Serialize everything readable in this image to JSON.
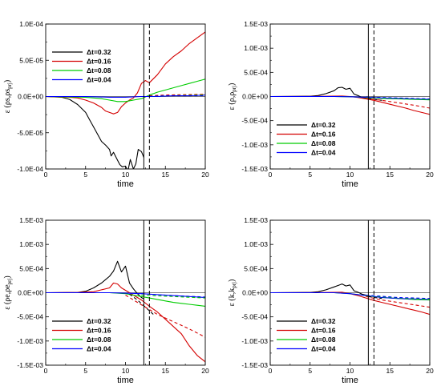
{
  "chart_data": [
    {
      "type": "line",
      "xlabel": "time",
      "ylabel": "ε (ρs,ρs",
      "ylabel_sub": "prj",
      "ylabel_close": ")",
      "xlim": [
        0,
        20
      ],
      "ylim": [
        -0.0001,
        0.0001
      ],
      "xticks": [
        "0",
        "5",
        "10",
        "15",
        "20"
      ],
      "yticks": [
        "-1.0E-04",
        "-5.0E-05",
        "0.0E+00",
        "5.0E-05",
        "1.0E-04"
      ],
      "legend_position": "top-left",
      "vlines": [
        {
          "x": 12.3,
          "style": "solid",
          "color": "#000000"
        },
        {
          "x": 13.0,
          "style": "dashed",
          "color": "#000000"
        }
      ],
      "series": [
        {
          "name": "Δt=0.32",
          "color": "#000000",
          "style": "solid",
          "x": [
            0,
            2,
            3,
            4,
            5,
            5.5,
            6,
            6.5,
            7,
            7.5,
            8,
            8.2,
            8.5,
            9,
            9.3,
            9.6,
            10,
            10.3,
            10.6,
            11,
            11.3,
            11.6,
            12,
            12.3
          ],
          "y": [
            0,
            -1e-06,
            -4e-06,
            -1.1e-05,
            -2.2e-05,
            -3.2e-05,
            -4.2e-05,
            -5.2e-05,
            -6.2e-05,
            -6.7e-05,
            -7.3e-05,
            -8.2e-05,
            -7.7e-05,
            -8.8e-05,
            -9.4e-05,
            -9.7e-05,
            -9.6e-05,
            -0.000103,
            -8.7e-05,
            -0.0001,
            -9.3e-05,
            -7.3e-05,
            -7.6e-05,
            -8.4e-05
          ]
        },
        {
          "name": "Δt=0.16",
          "color": "#d40000",
          "style": "solid",
          "x": [
            0,
            3,
            4,
            5,
            6,
            7,
            7.5,
            8,
            8.5,
            9,
            9.5,
            10,
            10.5,
            11,
            11.5,
            12,
            12.5,
            13,
            14,
            15,
            16,
            17,
            18,
            19,
            20
          ],
          "y": [
            0,
            -1e-06,
            -2e-06,
            -5e-06,
            -9e-06,
            -1.5e-05,
            -2e-05,
            -2.2e-05,
            -2.4e-05,
            -2.2e-05,
            -1.4e-05,
            -9e-06,
            -5e-06,
            -2e-06,
            5e-06,
            1.8e-05,
            2.2e-05,
            1.9e-05,
            3e-05,
            4.5e-05,
            5.5e-05,
            6.3e-05,
            7.3e-05,
            8.1e-05,
            8.9e-05
          ]
        },
        {
          "name": "Δt=0.08",
          "color": "#00cc00",
          "style": "solid",
          "x": [
            0,
            5,
            7,
            8,
            9,
            10,
            11,
            12,
            13,
            14,
            15,
            16,
            17,
            18,
            19,
            20
          ],
          "y": [
            0,
            -1e-06,
            -3e-06,
            -5e-06,
            -7e-06,
            -7e-06,
            -5e-06,
            -3e-06,
            2e-06,
            6e-06,
            9e-06,
            1.2e-05,
            1.5e-05,
            1.8e-05,
            2.1e-05,
            2.4e-05
          ]
        },
        {
          "name": "Δt=0.04",
          "color": "#0000ff",
          "style": "solid",
          "x": [
            0,
            5,
            8,
            10,
            12,
            14,
            16,
            18,
            20
          ],
          "y": [
            0,
            0,
            -1e-06,
            -1e-06,
            0,
            0,
            1e-06,
            1e-06,
            2e-06
          ]
        },
        {
          "name": "",
          "color": "#d40000",
          "style": "dashed",
          "x": [
            13,
            15,
            20
          ],
          "y": [
            1e-06,
            2e-06,
            3e-06
          ]
        },
        {
          "name": "",
          "color": "#00cc00",
          "style": "dashed",
          "x": [
            13,
            15,
            20
          ],
          "y": [
            0,
            1e-06,
            2e-06
          ]
        },
        {
          "name": "",
          "color": "#0000ff",
          "style": "dashed",
          "x": [
            13,
            15,
            20
          ],
          "y": [
            0,
            1e-06,
            1e-06
          ]
        }
      ]
    },
    {
      "type": "line",
      "xlabel": "time",
      "ylabel": "ε (ρ,ρ",
      "ylabel_sub": "prj",
      "ylabel_close": ")",
      "xlim": [
        0,
        20
      ],
      "ylim": [
        -0.0015,
        0.0015
      ],
      "xticks": [
        "0",
        "5",
        "10",
        "15",
        "20"
      ],
      "yticks": [
        "-1.5E-03",
        "-1.0E-03",
        "-5.0E-04",
        "0.0E+00",
        "5.0E-04",
        "1.0E-03",
        "1.5E-03"
      ],
      "legend_position": "bottom-left",
      "vlines": [
        {
          "x": 12.3,
          "style": "solid",
          "color": "#000000"
        },
        {
          "x": 13.0,
          "style": "dashed",
          "color": "#000000"
        }
      ],
      "series": [
        {
          "name": "Δt=0.32",
          "color": "#000000",
          "style": "solid",
          "x": [
            0,
            5,
            6,
            7,
            8,
            8.5,
            9,
            9.5,
            10,
            10.5,
            11,
            11.5,
            12,
            12.3
          ],
          "y": [
            0,
            5e-06,
            2e-05,
            6e-05,
            0.00012,
            0.00018,
            0.00019,
            0.00015,
            0.00017,
            5e-05,
            2e-05,
            -2e-05,
            -4e-05,
            -6e-05
          ]
        },
        {
          "name": "Δt=0.16",
          "color": "#d40000",
          "style": "solid",
          "x": [
            0,
            5,
            7,
            9,
            10,
            11,
            12,
            13,
            14,
            15,
            16,
            17,
            18,
            19,
            20
          ],
          "y": [
            0,
            2e-06,
            5e-06,
            1e-05,
            0,
            -2e-05,
            -5e-05,
            -8e-05,
            -0.00012,
            -0.00016,
            -0.0002,
            -0.00024,
            -0.00029,
            -0.00033,
            -0.00037
          ]
        },
        {
          "name": "Δt=0.08",
          "color": "#00cc00",
          "style": "solid",
          "x": [
            0,
            8,
            10,
            12,
            14,
            16,
            18,
            20
          ],
          "y": [
            0,
            0,
            -5e-06,
            -2e-05,
            -4e-05,
            -5e-05,
            -6e-05,
            -7e-05
          ]
        },
        {
          "name": "Δt=0.04",
          "color": "#0000ff",
          "style": "solid",
          "x": [
            0,
            8,
            10,
            12,
            14,
            16,
            18,
            20
          ],
          "y": [
            0,
            0,
            -5e-06,
            -1.5e-05,
            -3e-05,
            -4e-05,
            -5e-05,
            -6e-05
          ]
        },
        {
          "name": "",
          "color": "#000000",
          "style": "dashed",
          "x": [
            12.3,
            13,
            14
          ],
          "y": [
            -4e-05,
            -6e-05,
            -8e-05
          ]
        },
        {
          "name": "",
          "color": "#d40000",
          "style": "dashed",
          "x": [
            12,
            14,
            16,
            18,
            20
          ],
          "y": [
            -4e-05,
            -8e-05,
            -0.00013,
            -0.00018,
            -0.00024
          ]
        },
        {
          "name": "",
          "color": "#00cc00",
          "style": "dashed",
          "x": [
            12,
            16,
            20
          ],
          "y": [
            -2e-05,
            -4e-05,
            -6e-05
          ]
        },
        {
          "name": "",
          "color": "#0000ff",
          "style": "dashed",
          "x": [
            12,
            16,
            20
          ],
          "y": [
            -1e-05,
            -3e-05,
            -5e-05
          ]
        }
      ]
    },
    {
      "type": "line",
      "xlabel": "time",
      "ylabel": "ε (ρe,ρe",
      "ylabel_sub": "prj",
      "ylabel_close": ")",
      "xlim": [
        0,
        20
      ],
      "ylim": [
        -0.0015,
        0.0015
      ],
      "xticks": [
        "0",
        "5",
        "10",
        "15",
        "20"
      ],
      "yticks": [
        "-1.5E-03",
        "-1.0E-03",
        "-5.0E-04",
        "0.0E+00",
        "5.0E-04",
        "1.0E-03",
        "1.5E-03"
      ],
      "legend_position": "bottom-left",
      "vlines": [
        {
          "x": 12.3,
          "style": "solid",
          "color": "#000000"
        },
        {
          "x": 13.0,
          "style": "dashed",
          "color": "#000000"
        }
      ],
      "series": [
        {
          "name": "Δt=0.32",
          "color": "#000000",
          "style": "solid",
          "x": [
            0,
            4,
            5,
            6,
            7,
            7.5,
            8,
            8.5,
            9,
            9.5,
            10,
            10.5,
            11,
            11.5,
            12,
            12.3
          ],
          "y": [
            0,
            5e-06,
            3e-05,
            0.0001,
            0.0002,
            0.00027,
            0.00034,
            0.00045,
            0.00065,
            0.00043,
            0.00055,
            0.0002,
            8e-05,
            -2e-05,
            -0.0001,
            -0.00013
          ]
        },
        {
          "name": "Δt=0.16",
          "color": "#d40000",
          "style": "solid",
          "x": [
            0,
            4,
            6,
            7,
            8,
            8.5,
            9,
            9.5,
            10,
            11,
            12,
            13,
            14,
            15,
            16,
            17,
            18,
            19,
            20
          ],
          "y": [
            0,
            5e-06,
            2e-05,
            6e-05,
            0.0001,
            0.0002,
            0.00018,
            0.0001,
            5e-05,
            -5e-05,
            -0.00015,
            -0.00028,
            -0.0004,
            -0.00055,
            -0.0007,
            -0.00085,
            -0.0011,
            -0.0013,
            -0.00143
          ]
        },
        {
          "name": "Δt=0.08",
          "color": "#00cc00",
          "style": "solid",
          "x": [
            0,
            8,
            10,
            11,
            12,
            13,
            14,
            15,
            16,
            17,
            18,
            19,
            20
          ],
          "y": [
            0,
            0,
            -2e-05,
            -5e-05,
            -8e-05,
            -0.00011,
            -0.00014,
            -0.00017,
            -0.0002,
            -0.00022,
            -0.00024,
            -0.00026,
            -0.00028
          ]
        },
        {
          "name": "Δt=0.04",
          "color": "#0000ff",
          "style": "solid",
          "x": [
            0,
            8,
            10,
            12,
            14,
            16,
            18,
            20
          ],
          "y": [
            0,
            0,
            -1e-05,
            -2e-05,
            -4e-05,
            -6e-05,
            -8e-05,
            -0.0001
          ]
        },
        {
          "name": "",
          "color": "#000000",
          "style": "dashed",
          "x": [
            10.5,
            11.5,
            12.5,
            13.5
          ],
          "y": [
            -3e-05,
            -0.00015,
            -0.0003,
            -0.00045
          ]
        },
        {
          "name": "",
          "color": "#d40000",
          "style": "dashed",
          "x": [
            10,
            12,
            14,
            16,
            18,
            20
          ],
          "y": [
            -5e-05,
            -0.00025,
            -0.00045,
            -0.0006,
            -0.00075,
            -0.00092
          ]
        },
        {
          "name": "",
          "color": "#00cc00",
          "style": "dashed",
          "x": [
            12,
            16,
            20
          ],
          "y": [
            -5e-05,
            -8e-05,
            -0.00011
          ]
        },
        {
          "name": "",
          "color": "#0000ff",
          "style": "dashed",
          "x": [
            12,
            16,
            20
          ],
          "y": [
            -2e-05,
            -6e-05,
            -9e-05
          ]
        }
      ]
    },
    {
      "type": "line",
      "xlabel": "time",
      "ylabel": "ε (k,k",
      "ylabel_sub": "prj",
      "ylabel_close": ")",
      "xlim": [
        0,
        20
      ],
      "ylim": [
        -0.0015,
        0.0015
      ],
      "xticks": [
        "0",
        "5",
        "10",
        "15",
        "20"
      ],
      "yticks": [
        "-1.5E-03",
        "-1.0E-03",
        "-5.0E-04",
        "0.0E+00",
        "5.0E-04",
        "1.0E-03",
        "1.5E-03"
      ],
      "legend_position": "bottom-left",
      "vlines": [
        {
          "x": 12.3,
          "style": "solid",
          "color": "#000000"
        },
        {
          "x": 13.0,
          "style": "dashed",
          "color": "#000000"
        }
      ],
      "series": [
        {
          "name": "Δt=0.32",
          "color": "#000000",
          "style": "solid",
          "x": [
            0,
            5,
            6,
            7,
            8,
            8.5,
            9,
            9.5,
            10,
            10.5,
            11,
            11.5,
            12,
            12.3
          ],
          "y": [
            0,
            5e-06,
            2e-05,
            6e-05,
            0.00012,
            0.00015,
            0.00018,
            0.00014,
            0.00016,
            4e-05,
            1e-05,
            -3e-05,
            -5e-05,
            -8e-05
          ]
        },
        {
          "name": "Δt=0.16",
          "color": "#d40000",
          "style": "solid",
          "x": [
            0,
            5,
            7,
            9,
            10,
            11,
            12,
            13,
            14,
            15,
            16,
            17,
            18,
            19,
            20
          ],
          "y": [
            0,
            2e-06,
            5e-06,
            1e-05,
            -2e-05,
            -6e-05,
            -0.00011,
            -0.00016,
            -0.0002,
            -0.00024,
            -0.00028,
            -0.00032,
            -0.00036,
            -0.0004,
            -0.00045
          ]
        },
        {
          "name": "Δt=0.08",
          "color": "#00cc00",
          "style": "solid",
          "x": [
            0,
            8,
            10,
            12,
            14,
            16,
            18,
            20
          ],
          "y": [
            0,
            0,
            -2e-05,
            -6e-05,
            -0.0001,
            -0.00012,
            -0.00014,
            -0.00015
          ]
        },
        {
          "name": "Δt=0.04",
          "color": "#0000ff",
          "style": "solid",
          "x": [
            0,
            8,
            10,
            12,
            14,
            16,
            18,
            20
          ],
          "y": [
            0,
            0,
            -2e-05,
            -6e-05,
            -0.0001,
            -0.00012,
            -0.00013,
            -0.00014
          ]
        },
        {
          "name": "",
          "color": "#000000",
          "style": "dashed",
          "x": [
            12.3,
            13,
            14
          ],
          "y": [
            -8e-05,
            -0.0001,
            -0.00012
          ]
        },
        {
          "name": "",
          "color": "#d40000",
          "style": "dashed",
          "x": [
            12,
            14,
            16,
            18,
            20
          ],
          "y": [
            -8e-05,
            -0.00015,
            -0.0002,
            -0.00025,
            -0.0003
          ]
        },
        {
          "name": "",
          "color": "#00cc00",
          "style": "dashed",
          "x": [
            12,
            16,
            20
          ],
          "y": [
            -6e-05,
            -0.00011,
            -0.00014
          ]
        },
        {
          "name": "",
          "color": "#0000ff",
          "style": "dashed",
          "x": [
            12,
            16,
            20
          ],
          "y": [
            -5e-05,
            -0.0001,
            -0.00012
          ]
        }
      ]
    }
  ]
}
